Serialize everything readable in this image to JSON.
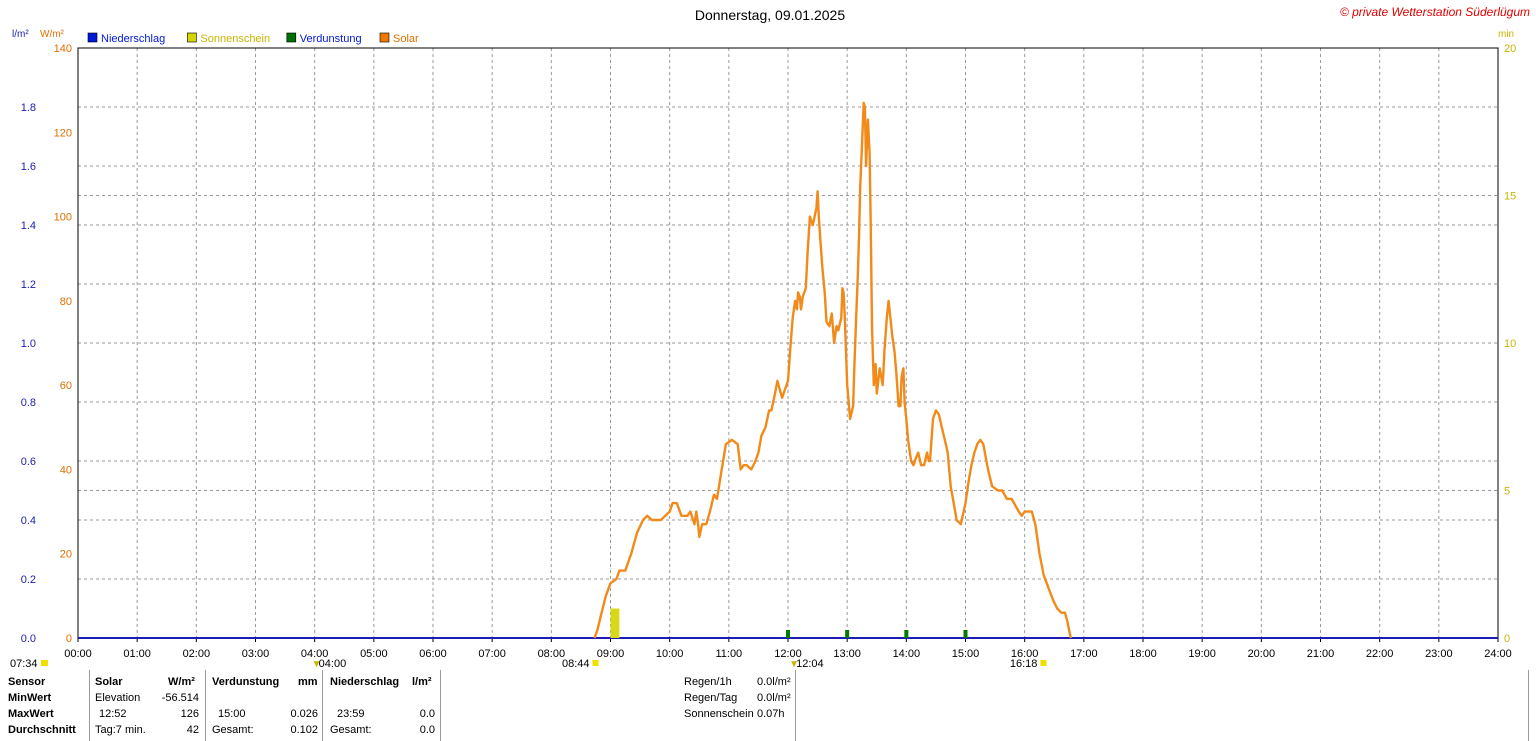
{
  "header": {
    "title": "Donnerstag, 09.01.2025",
    "copyright": "© private Wetterstation Süderlügum"
  },
  "axis_units": {
    "left_blue": "l/m²",
    "left_orange": "W/m²",
    "right": "min"
  },
  "legend": [
    {
      "label": "Niederschlag",
      "color": "#0018d8"
    },
    {
      "label": "Sonnenschein",
      "color": "#d4d400"
    },
    {
      "label": "Verdunstung",
      "color": "#007000"
    },
    {
      "label": "Solar",
      "color": "#f07800"
    }
  ],
  "colors": {
    "solar": "#f28a1a",
    "sunshine": "#d8d818",
    "evaporation": "#007a00",
    "precip_axis": "#1c1cb4",
    "solar_axis": "#e07000",
    "min_axis": "#c8b400",
    "grid": "#9a9a9a"
  },
  "chart_data": {
    "type": "line",
    "title": "Donnerstag, 09.01.2025",
    "x_unit": "hours",
    "xlim": [
      0,
      24
    ],
    "x_ticks": [
      "00:00",
      "01:00",
      "02:00",
      "03:00",
      "04:00",
      "05:00",
      "06:00",
      "07:00",
      "08:00",
      "09:00",
      "10:00",
      "11:00",
      "12:00",
      "13:00",
      "14:00",
      "15:00",
      "16:00",
      "17:00",
      "18:00",
      "19:00",
      "20:00",
      "21:00",
      "22:00",
      "23:00",
      "24:00"
    ],
    "y_left_precip": {
      "label": "l/m²",
      "lim": [
        0,
        2
      ],
      "ticks": [
        "0.0",
        "0.2",
        "0.4",
        "0.6",
        "0.8",
        "1.0",
        "1.2",
        "1.4",
        "1.6",
        "1.8"
      ]
    },
    "y_left_solar": {
      "label": "W/m²",
      "lim": [
        0,
        140
      ],
      "ticks": [
        "0",
        "20",
        "40",
        "60",
        "80",
        "100",
        "120",
        "140"
      ]
    },
    "y_right": {
      "label": "min",
      "lim": [
        0,
        20
      ],
      "ticks": [
        "0",
        "5",
        "10",
        "15",
        "20"
      ]
    },
    "grid": true,
    "legend_position": "top-left",
    "series": [
      {
        "name": "Solar",
        "axis": "W/m²",
        "points": [
          [
            8.73,
            0
          ],
          [
            8.78,
            2
          ],
          [
            8.85,
            6
          ],
          [
            8.92,
            10
          ],
          [
            9.0,
            13
          ],
          [
            9.1,
            14
          ],
          [
            9.15,
            16
          ],
          [
            9.25,
            16
          ],
          [
            9.35,
            20
          ],
          [
            9.45,
            25
          ],
          [
            9.55,
            28
          ],
          [
            9.62,
            29
          ],
          [
            9.7,
            28
          ],
          [
            9.85,
            28
          ],
          [
            10.0,
            30
          ],
          [
            10.05,
            32
          ],
          [
            10.12,
            32
          ],
          [
            10.2,
            29
          ],
          [
            10.3,
            29
          ],
          [
            10.35,
            30
          ],
          [
            10.42,
            27
          ],
          [
            10.45,
            30
          ],
          [
            10.48,
            27
          ],
          [
            10.5,
            24
          ],
          [
            10.55,
            27
          ],
          [
            10.62,
            27
          ],
          [
            10.68,
            30
          ],
          [
            10.75,
            34
          ],
          [
            10.8,
            33
          ],
          [
            10.88,
            40
          ],
          [
            10.95,
            46
          ],
          [
            11.05,
            47
          ],
          [
            11.15,
            46
          ],
          [
            11.2,
            40
          ],
          [
            11.25,
            41
          ],
          [
            11.3,
            41
          ],
          [
            11.38,
            40
          ],
          [
            11.45,
            42
          ],
          [
            11.5,
            44
          ],
          [
            11.55,
            48
          ],
          [
            11.62,
            50
          ],
          [
            11.68,
            54
          ],
          [
            11.72,
            54
          ],
          [
            11.78,
            58
          ],
          [
            11.82,
            61
          ],
          [
            11.9,
            57
          ],
          [
            11.95,
            59
          ],
          [
            12.0,
            61
          ],
          [
            12.04,
            69
          ],
          [
            12.08,
            76
          ],
          [
            12.12,
            80
          ],
          [
            12.15,
            78
          ],
          [
            12.17,
            82
          ],
          [
            12.2,
            81
          ],
          [
            12.22,
            78
          ],
          [
            12.25,
            81
          ],
          [
            12.3,
            83
          ],
          [
            12.33,
            91
          ],
          [
            12.37,
            100
          ],
          [
            12.42,
            98
          ],
          [
            12.48,
            102
          ],
          [
            12.5,
            106
          ],
          [
            12.52,
            100
          ],
          [
            12.55,
            94
          ],
          [
            12.58,
            88
          ],
          [
            12.62,
            82
          ],
          [
            12.65,
            75
          ],
          [
            12.7,
            74
          ],
          [
            12.74,
            77
          ],
          [
            12.78,
            70
          ],
          [
            12.82,
            74
          ],
          [
            12.85,
            73
          ],
          [
            12.9,
            76
          ],
          [
            12.92,
            83
          ],
          [
            12.94,
            82
          ],
          [
            12.96,
            76
          ],
          [
            12.98,
            68
          ],
          [
            13.0,
            60
          ],
          [
            13.05,
            52
          ],
          [
            13.1,
            55
          ],
          [
            13.12,
            64
          ],
          [
            13.15,
            75
          ],
          [
            13.18,
            86
          ],
          [
            13.2,
            95
          ],
          [
            13.22,
            107
          ],
          [
            13.25,
            117
          ],
          [
            13.28,
            127
          ],
          [
            13.3,
            126
          ],
          [
            13.32,
            112
          ],
          [
            13.35,
            123
          ],
          [
            13.38,
            115
          ],
          [
            13.4,
            97
          ],
          [
            13.42,
            74
          ],
          [
            13.45,
            60
          ],
          [
            13.48,
            65
          ],
          [
            13.5,
            58
          ],
          [
            13.55,
            64
          ],
          [
            13.6,
            60
          ],
          [
            13.63,
            68
          ],
          [
            13.67,
            76
          ],
          [
            13.7,
            80
          ],
          [
            13.73,
            76
          ],
          [
            13.76,
            72
          ],
          [
            13.8,
            68
          ],
          [
            13.83,
            63
          ],
          [
            13.87,
            55
          ],
          [
            13.9,
            55
          ],
          [
            13.92,
            62
          ],
          [
            13.95,
            64
          ],
          [
            13.97,
            56
          ],
          [
            14.0,
            52
          ],
          [
            14.03,
            47
          ],
          [
            14.08,
            42
          ],
          [
            14.12,
            41
          ],
          [
            14.17,
            43
          ],
          [
            14.2,
            44
          ],
          [
            14.25,
            41
          ],
          [
            14.3,
            41
          ],
          [
            14.35,
            44
          ],
          [
            14.38,
            42
          ],
          [
            14.4,
            42
          ],
          [
            14.45,
            52
          ],
          [
            14.5,
            54
          ],
          [
            14.55,
            53
          ],
          [
            14.6,
            50
          ],
          [
            14.65,
            47
          ],
          [
            14.7,
            44
          ],
          [
            14.75,
            36
          ],
          [
            14.8,
            32
          ],
          [
            14.85,
            28
          ],
          [
            14.92,
            27
          ],
          [
            15.0,
            32
          ],
          [
            15.05,
            37
          ],
          [
            15.1,
            41
          ],
          [
            15.15,
            44
          ],
          [
            15.2,
            46
          ],
          [
            15.25,
            47
          ],
          [
            15.3,
            46
          ],
          [
            15.38,
            40
          ],
          [
            15.45,
            36
          ],
          [
            15.55,
            35
          ],
          [
            15.62,
            35
          ],
          [
            15.7,
            33
          ],
          [
            15.78,
            33
          ],
          [
            15.82,
            32
          ],
          [
            15.9,
            30
          ],
          [
            15.95,
            29
          ],
          [
            16.0,
            30
          ],
          [
            16.05,
            30
          ],
          [
            16.12,
            30
          ],
          [
            16.18,
            27
          ],
          [
            16.25,
            20
          ],
          [
            16.32,
            15
          ],
          [
            16.4,
            12
          ],
          [
            16.48,
            9
          ],
          [
            16.55,
            7
          ],
          [
            16.62,
            6
          ],
          [
            16.68,
            6
          ],
          [
            16.72,
            4
          ],
          [
            16.75,
            2
          ],
          [
            16.78,
            0
          ]
        ]
      },
      {
        "name": "Sonnenschein",
        "axis": "min",
        "bars": [
          {
            "x_start": 9.0,
            "x_end": 9.15,
            "value": 1.0
          }
        ]
      },
      {
        "name": "Verdunstung",
        "axis": "l/m²",
        "points": [
          [
            12.0,
            0.026
          ],
          [
            13.0,
            0.026
          ],
          [
            14.0,
            0.026
          ],
          [
            15.0,
            0.026
          ]
        ]
      },
      {
        "name": "Niederschlag",
        "axis": "l/m²",
        "points": [
          [
            0,
            0.0
          ],
          [
            24,
            0.0
          ]
        ]
      }
    ],
    "markers": [
      {
        "time": "07:34",
        "x": 7.57,
        "row": "left"
      },
      {
        "time": "04:00",
        "x": 4.0,
        "row": "a"
      },
      {
        "time": "08:44",
        "x": 8.73,
        "row": "b"
      },
      {
        "time": "12:04",
        "x": 12.07,
        "row": "a"
      },
      {
        "time": "16:18",
        "x": 16.3,
        "row": "b"
      }
    ]
  },
  "stats": {
    "sensor_header": "Sensor",
    "min_label": "MinWert",
    "max_label": "MaxWert",
    "avg_label": "Durchschnitt",
    "solar": {
      "title": "Solar",
      "unit": "W/m²",
      "min_label": "Elevation",
      "min_value": "-56.514",
      "max_time": "12:52",
      "max_value": "126",
      "avg_label": "Tag:7 min.",
      "avg_value": "42"
    },
    "evaporation": {
      "title": "Verdunstung",
      "unit": "mm",
      "max_time": "15:00",
      "max_value": "0.026",
      "total_label": "Gesamt:",
      "total_value": "0.102"
    },
    "precip": {
      "title": "Niederschlag",
      "unit": "l/m²",
      "max_time": "23:59",
      "max_value": "0.0",
      "total_label": "Gesamt:",
      "total_value": "0.0"
    },
    "summary": [
      {
        "label": "Regen/1h",
        "value": "0.0l/m²"
      },
      {
        "label": "Regen/Tag",
        "value": "0.0l/m²"
      },
      {
        "label": "Sonnenschein",
        "value": "0.07h"
      }
    ]
  }
}
